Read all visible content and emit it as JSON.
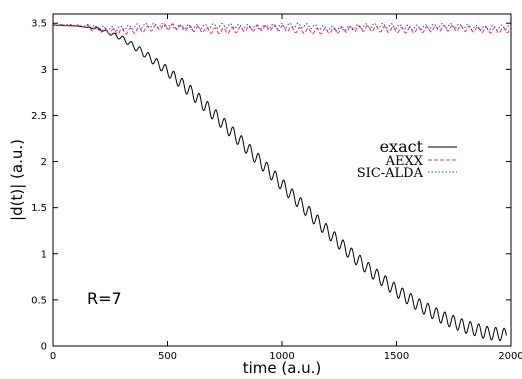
{
  "chart_data": {
    "type": "line",
    "title": "",
    "xlabel": "time (a.u.)",
    "ylabel": "|d(t)| (a.u.)",
    "xlim": [
      0,
      2000
    ],
    "ylim": [
      0,
      3.6
    ],
    "xticks": [
      "0",
      "500",
      "1000",
      "1500",
      "2000"
    ],
    "yticks": [
      "0",
      "0.5",
      "1",
      "1.5",
      "2",
      "2.5",
      "3",
      "3.5"
    ],
    "grid": false,
    "legend_position": "right-center",
    "annotation": "R=7",
    "series": [
      {
        "name": "exact",
        "color": "#000000",
        "style": "solid",
        "x": [
          0,
          100,
          200,
          300,
          400,
          500,
          600,
          700,
          800,
          900,
          1000,
          1100,
          1200,
          1300,
          1400,
          1500,
          1600,
          1700,
          1800,
          1900,
          1980
        ],
        "values": [
          3.48,
          3.47,
          3.44,
          3.34,
          3.17,
          2.98,
          2.76,
          2.52,
          2.27,
          2.01,
          1.75,
          1.49,
          1.24,
          1.0,
          0.79,
          0.6,
          0.44,
          0.31,
          0.21,
          0.14,
          0.12
        ]
      },
      {
        "name": "AEXX",
        "color": "#e8343a",
        "style": "dashed",
        "x": [
          0,
          250,
          500,
          750,
          1000,
          1250,
          1500,
          1750,
          2000
        ],
        "values": [
          3.48,
          3.42,
          3.45,
          3.43,
          3.44,
          3.42,
          3.44,
          3.43,
          3.44
        ]
      },
      {
        "name": "SIC-ALDA",
        "color": "#3a3ae0",
        "style": "dotted",
        "x": [
          0,
          250,
          500,
          750,
          1000,
          1250,
          1500,
          1750,
          2000
        ],
        "values": [
          3.48,
          3.45,
          3.47,
          3.46,
          3.47,
          3.45,
          3.47,
          3.46,
          3.46
        ]
      }
    ]
  }
}
